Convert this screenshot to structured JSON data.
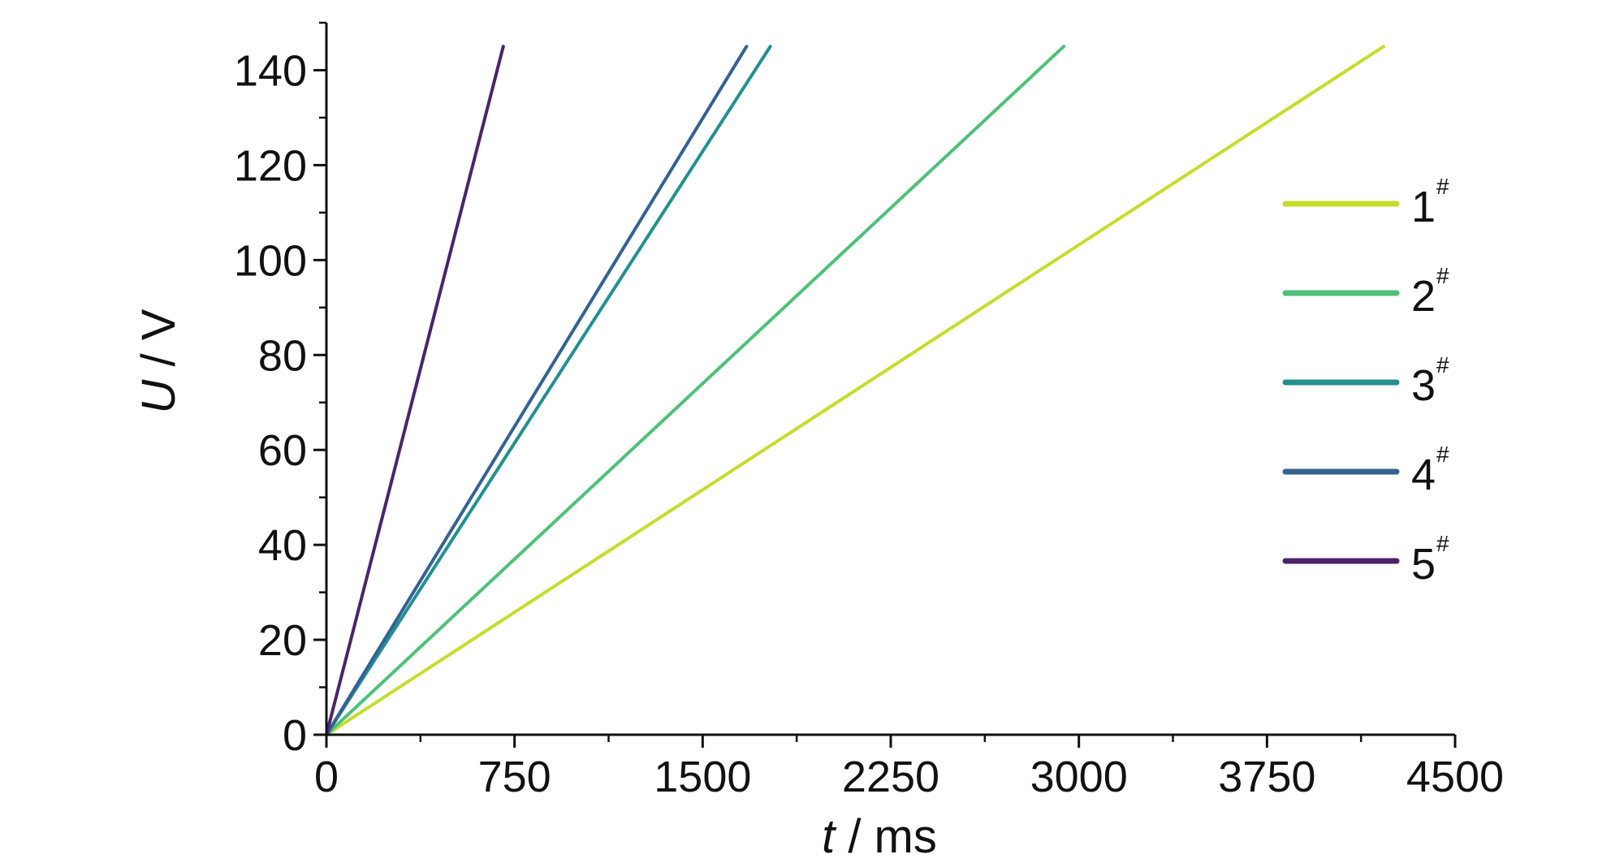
{
  "chart_data": {
    "type": "line",
    "xlabel_var": "t",
    "xlabel_unit": " / ms",
    "ylabel_var": "U",
    "ylabel_unit": " / V",
    "xlim": [
      0,
      4500
    ],
    "ylim": [
      0,
      150
    ],
    "x_ticks": [
      0,
      750,
      1500,
      2250,
      3000,
      3750,
      4500
    ],
    "y_ticks": [
      0,
      20,
      40,
      60,
      80,
      100,
      120,
      140
    ],
    "grid": false,
    "legend_position": "right",
    "series": [
      {
        "name": "1",
        "name_sup": "#",
        "color": "#c5dd2c",
        "x": [
          0,
          4215
        ],
        "y": [
          0,
          145
        ]
      },
      {
        "name": "2",
        "name_sup": "#",
        "color": "#4dc17a",
        "x": [
          0,
          2940
        ],
        "y": [
          0,
          145
        ]
      },
      {
        "name": "3",
        "name_sup": "#",
        "color": "#23908f",
        "x": [
          0,
          1770
        ],
        "y": [
          0,
          145
        ]
      },
      {
        "name": "4",
        "name_sup": "#",
        "color": "#356193",
        "x": [
          0,
          1675
        ],
        "y": [
          0,
          145
        ]
      },
      {
        "name": "5",
        "name_sup": "#",
        "color": "#4a246b",
        "x": [
          0,
          705
        ],
        "y": [
          0,
          145
        ]
      }
    ]
  }
}
